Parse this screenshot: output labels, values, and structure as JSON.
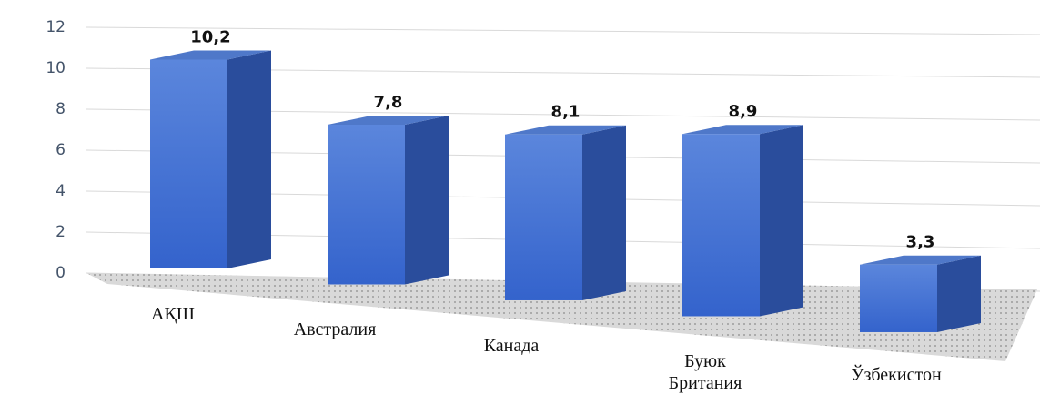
{
  "chart_data": {
    "type": "bar3d",
    "categories": [
      "АҚШ",
      "Австралия",
      "Канада",
      "Буюк Британия",
      "Ўзбекистон"
    ],
    "values": [
      10.2,
      7.8,
      8.1,
      8.9,
      3.3
    ],
    "value_labels": [
      "10,2",
      "7,8",
      "8,1",
      "8,9",
      "3,3"
    ],
    "color": "#4472c4",
    "ylim": [
      0,
      12
    ],
    "yticks": [
      0,
      2,
      4,
      6,
      8,
      10,
      12
    ],
    "grid": true
  }
}
